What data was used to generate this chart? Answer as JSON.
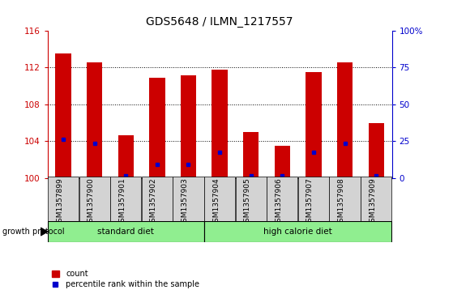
{
  "title": "GDS5648 / ILMN_1217557",
  "samples": [
    "GSM1357899",
    "GSM1357900",
    "GSM1357901",
    "GSM1357902",
    "GSM1357903",
    "GSM1357904",
    "GSM1357905",
    "GSM1357906",
    "GSM1357907",
    "GSM1357908",
    "GSM1357909"
  ],
  "counts": [
    113.5,
    112.6,
    104.6,
    110.9,
    111.2,
    111.8,
    105.0,
    103.5,
    111.5,
    112.6,
    106.0
  ],
  "percentile_values": [
    104.2,
    103.8,
    100.2,
    101.5,
    101.5,
    102.8,
    100.2,
    100.2,
    102.8,
    103.8,
    100.2
  ],
  "ymin": 100,
  "ymax": 116,
  "yticks": [
    100,
    104,
    108,
    112,
    116
  ],
  "right_yticks": [
    0,
    25,
    50,
    75,
    100
  ],
  "bar_color": "#CC0000",
  "percentile_color": "#0000CC",
  "tick_label_color_left": "#CC0000",
  "tick_label_color_right": "#0000CC",
  "group1_label": "standard diet",
  "group2_label": "high calorie diet",
  "group1_indices": [
    0,
    1,
    2,
    3,
    4
  ],
  "group2_indices": [
    5,
    6,
    7,
    8,
    9,
    10
  ],
  "growth_protocol_label": "growth protocol",
  "group_box_color": "#90EE90",
  "sample_box_color": "#D3D3D3",
  "bar_width": 0.5,
  "title_fontsize": 10
}
